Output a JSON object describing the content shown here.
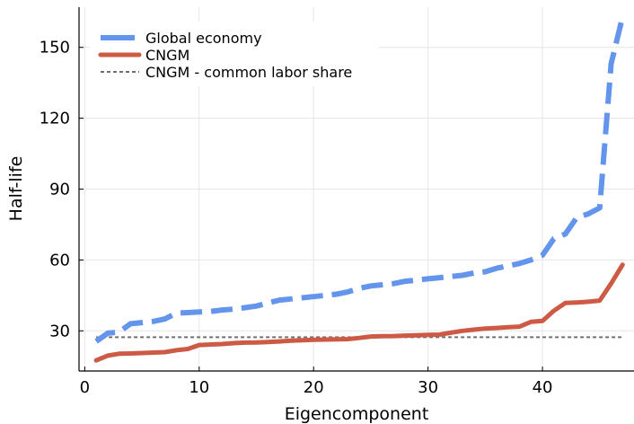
{
  "chart_data": {
    "type": "line",
    "title": "",
    "xlabel": "Eigencomponent",
    "ylabel": "Half-life",
    "xlim": [
      -0.5,
      48
    ],
    "ylim": [
      13,
      167
    ],
    "xticks": [
      0,
      10,
      20,
      30,
      40
    ],
    "yticks": [
      30,
      60,
      90,
      120,
      150
    ],
    "grid": true,
    "legend_position": "top-left",
    "series": [
      {
        "name": "Global economy",
        "color": "#6495ed",
        "style": "dashed",
        "x": [
          1,
          2,
          3,
          4,
          5,
          6,
          7,
          8,
          9,
          10,
          11,
          12,
          13,
          14,
          15,
          16,
          17,
          18,
          19,
          20,
          21,
          22,
          23,
          24,
          25,
          26,
          27,
          28,
          29,
          30,
          31,
          32,
          33,
          34,
          35,
          36,
          37,
          38,
          39,
          40,
          41,
          42,
          43,
          44,
          45,
          46,
          47
        ],
        "y": [
          25.5,
          29,
          29.5,
          33,
          33.5,
          34,
          35,
          37.5,
          37.7,
          38,
          38.2,
          38.8,
          39.2,
          39.8,
          40.5,
          41.8,
          43,
          43.5,
          44,
          44.5,
          45,
          45.5,
          46.5,
          48,
          49,
          49.5,
          50,
          51,
          51.5,
          52,
          52.5,
          53,
          53.5,
          54.5,
          55,
          56.5,
          57.5,
          58.5,
          60,
          62,
          69,
          71,
          78,
          79.5,
          82,
          143,
          163
        ]
      },
      {
        "name": "CNGM",
        "color": "#cd5a45",
        "style": "solid",
        "x": [
          1,
          2,
          3,
          4,
          5,
          6,
          7,
          8,
          9,
          10,
          11,
          12,
          13,
          14,
          15,
          16,
          17,
          18,
          19,
          20,
          21,
          22,
          23,
          24,
          25,
          26,
          27,
          28,
          29,
          30,
          31,
          32,
          33,
          34,
          35,
          36,
          37,
          38,
          39,
          40,
          41,
          42,
          43,
          44,
          45,
          46,
          47
        ],
        "y": [
          17.5,
          19.5,
          20.3,
          20.4,
          20.6,
          20.8,
          21,
          21.8,
          22.3,
          24,
          24.2,
          24.4,
          24.8,
          25,
          25.1,
          25.3,
          25.5,
          25.8,
          26,
          26.2,
          26.3,
          26.4,
          26.5,
          27,
          27.6,
          27.7,
          27.8,
          28,
          28.1,
          28.3,
          28.4,
          29.2,
          30,
          30.5,
          31,
          31.2,
          31.5,
          31.8,
          33.8,
          34.2,
          38.5,
          41.8,
          42,
          42.3,
          42.8,
          50,
          58
        ]
      },
      {
        "name": "CNGM - common labor share",
        "color": "#707070",
        "style": "dotted",
        "x": [
          1,
          47
        ],
        "y": [
          27.3,
          27.3
        ]
      }
    ]
  }
}
